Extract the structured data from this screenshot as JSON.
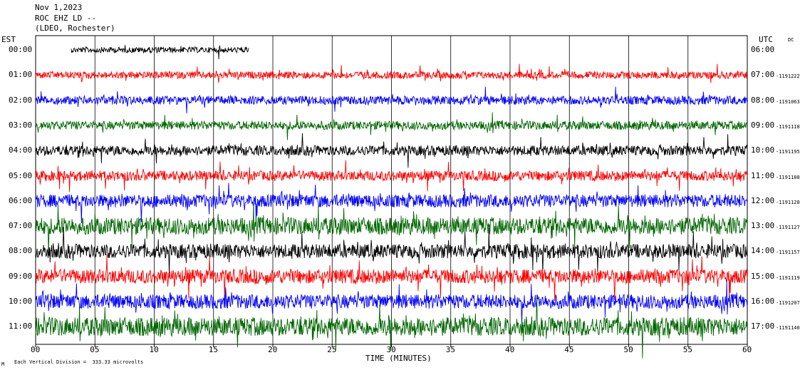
{
  "header": {
    "date": "Nov 1,2023",
    "station": "ROC EHZ LD --",
    "network": "(LDEO, Rochester)"
  },
  "axes": {
    "left_label": "EST",
    "right_label": "UTC",
    "dc_label": "DC",
    "x_title": "TIME (MINUTES)",
    "footer": "Each Vertical Division =  333.33 microvolts",
    "corner_mark": "M"
  },
  "colors": {
    "black": "#000000",
    "red": "#ff0000",
    "blue": "#0000ff",
    "green": "#006600"
  },
  "chart_data": {
    "type": "line",
    "title": "Nov 1,2023",
    "xlabel": "TIME (MINUTES)",
    "xlim": [
      0,
      60
    ],
    "x_ticks": [
      "00",
      "05",
      "10",
      "15",
      "20",
      "25",
      "30",
      "35",
      "40",
      "45",
      "50",
      "55",
      "60"
    ],
    "rows": [
      {
        "est": "00:00",
        "utc": "06:00",
        "dc": "",
        "color": "black",
        "start": 3,
        "end": 18,
        "amp": 4
      },
      {
        "est": "01:00",
        "utc": "07:00",
        "dc": "1191222",
        "color": "red",
        "start": 0,
        "end": 60,
        "amp": 5
      },
      {
        "est": "02:00",
        "utc": "08:00",
        "dc": "1191063",
        "color": "blue",
        "start": 0,
        "end": 60,
        "amp": 6
      },
      {
        "est": "03:00",
        "utc": "09:00",
        "dc": "1191118",
        "color": "green",
        "start": 0,
        "end": 60,
        "amp": 6
      },
      {
        "est": "04:00",
        "utc": "10:00",
        "dc": "1191195",
        "color": "black",
        "start": 0,
        "end": 60,
        "amp": 7
      },
      {
        "est": "05:00",
        "utc": "11:00",
        "dc": "1191188",
        "color": "red",
        "start": 0,
        "end": 60,
        "amp": 7
      },
      {
        "est": "06:00",
        "utc": "12:00",
        "dc": "1191128",
        "color": "blue",
        "start": 0,
        "end": 60,
        "amp": 9
      },
      {
        "est": "07:00",
        "utc": "13:00",
        "dc": "1191127",
        "color": "green",
        "start": 0,
        "end": 60,
        "amp": 12
      },
      {
        "est": "08:00",
        "utc": "14:00",
        "dc": "1191157",
        "color": "black",
        "start": 0,
        "end": 60,
        "amp": 10
      },
      {
        "est": "09:00",
        "utc": "15:00",
        "dc": "1191119",
        "color": "red",
        "start": 0,
        "end": 60,
        "amp": 10
      },
      {
        "est": "10:00",
        "utc": "16:00",
        "dc": "1191207",
        "color": "blue",
        "start": 0,
        "end": 60,
        "amp": 10
      },
      {
        "est": "11:00",
        "utc": "17:00",
        "dc": "1191140",
        "color": "green",
        "start": 0,
        "end": 60,
        "amp": 13
      }
    ]
  }
}
